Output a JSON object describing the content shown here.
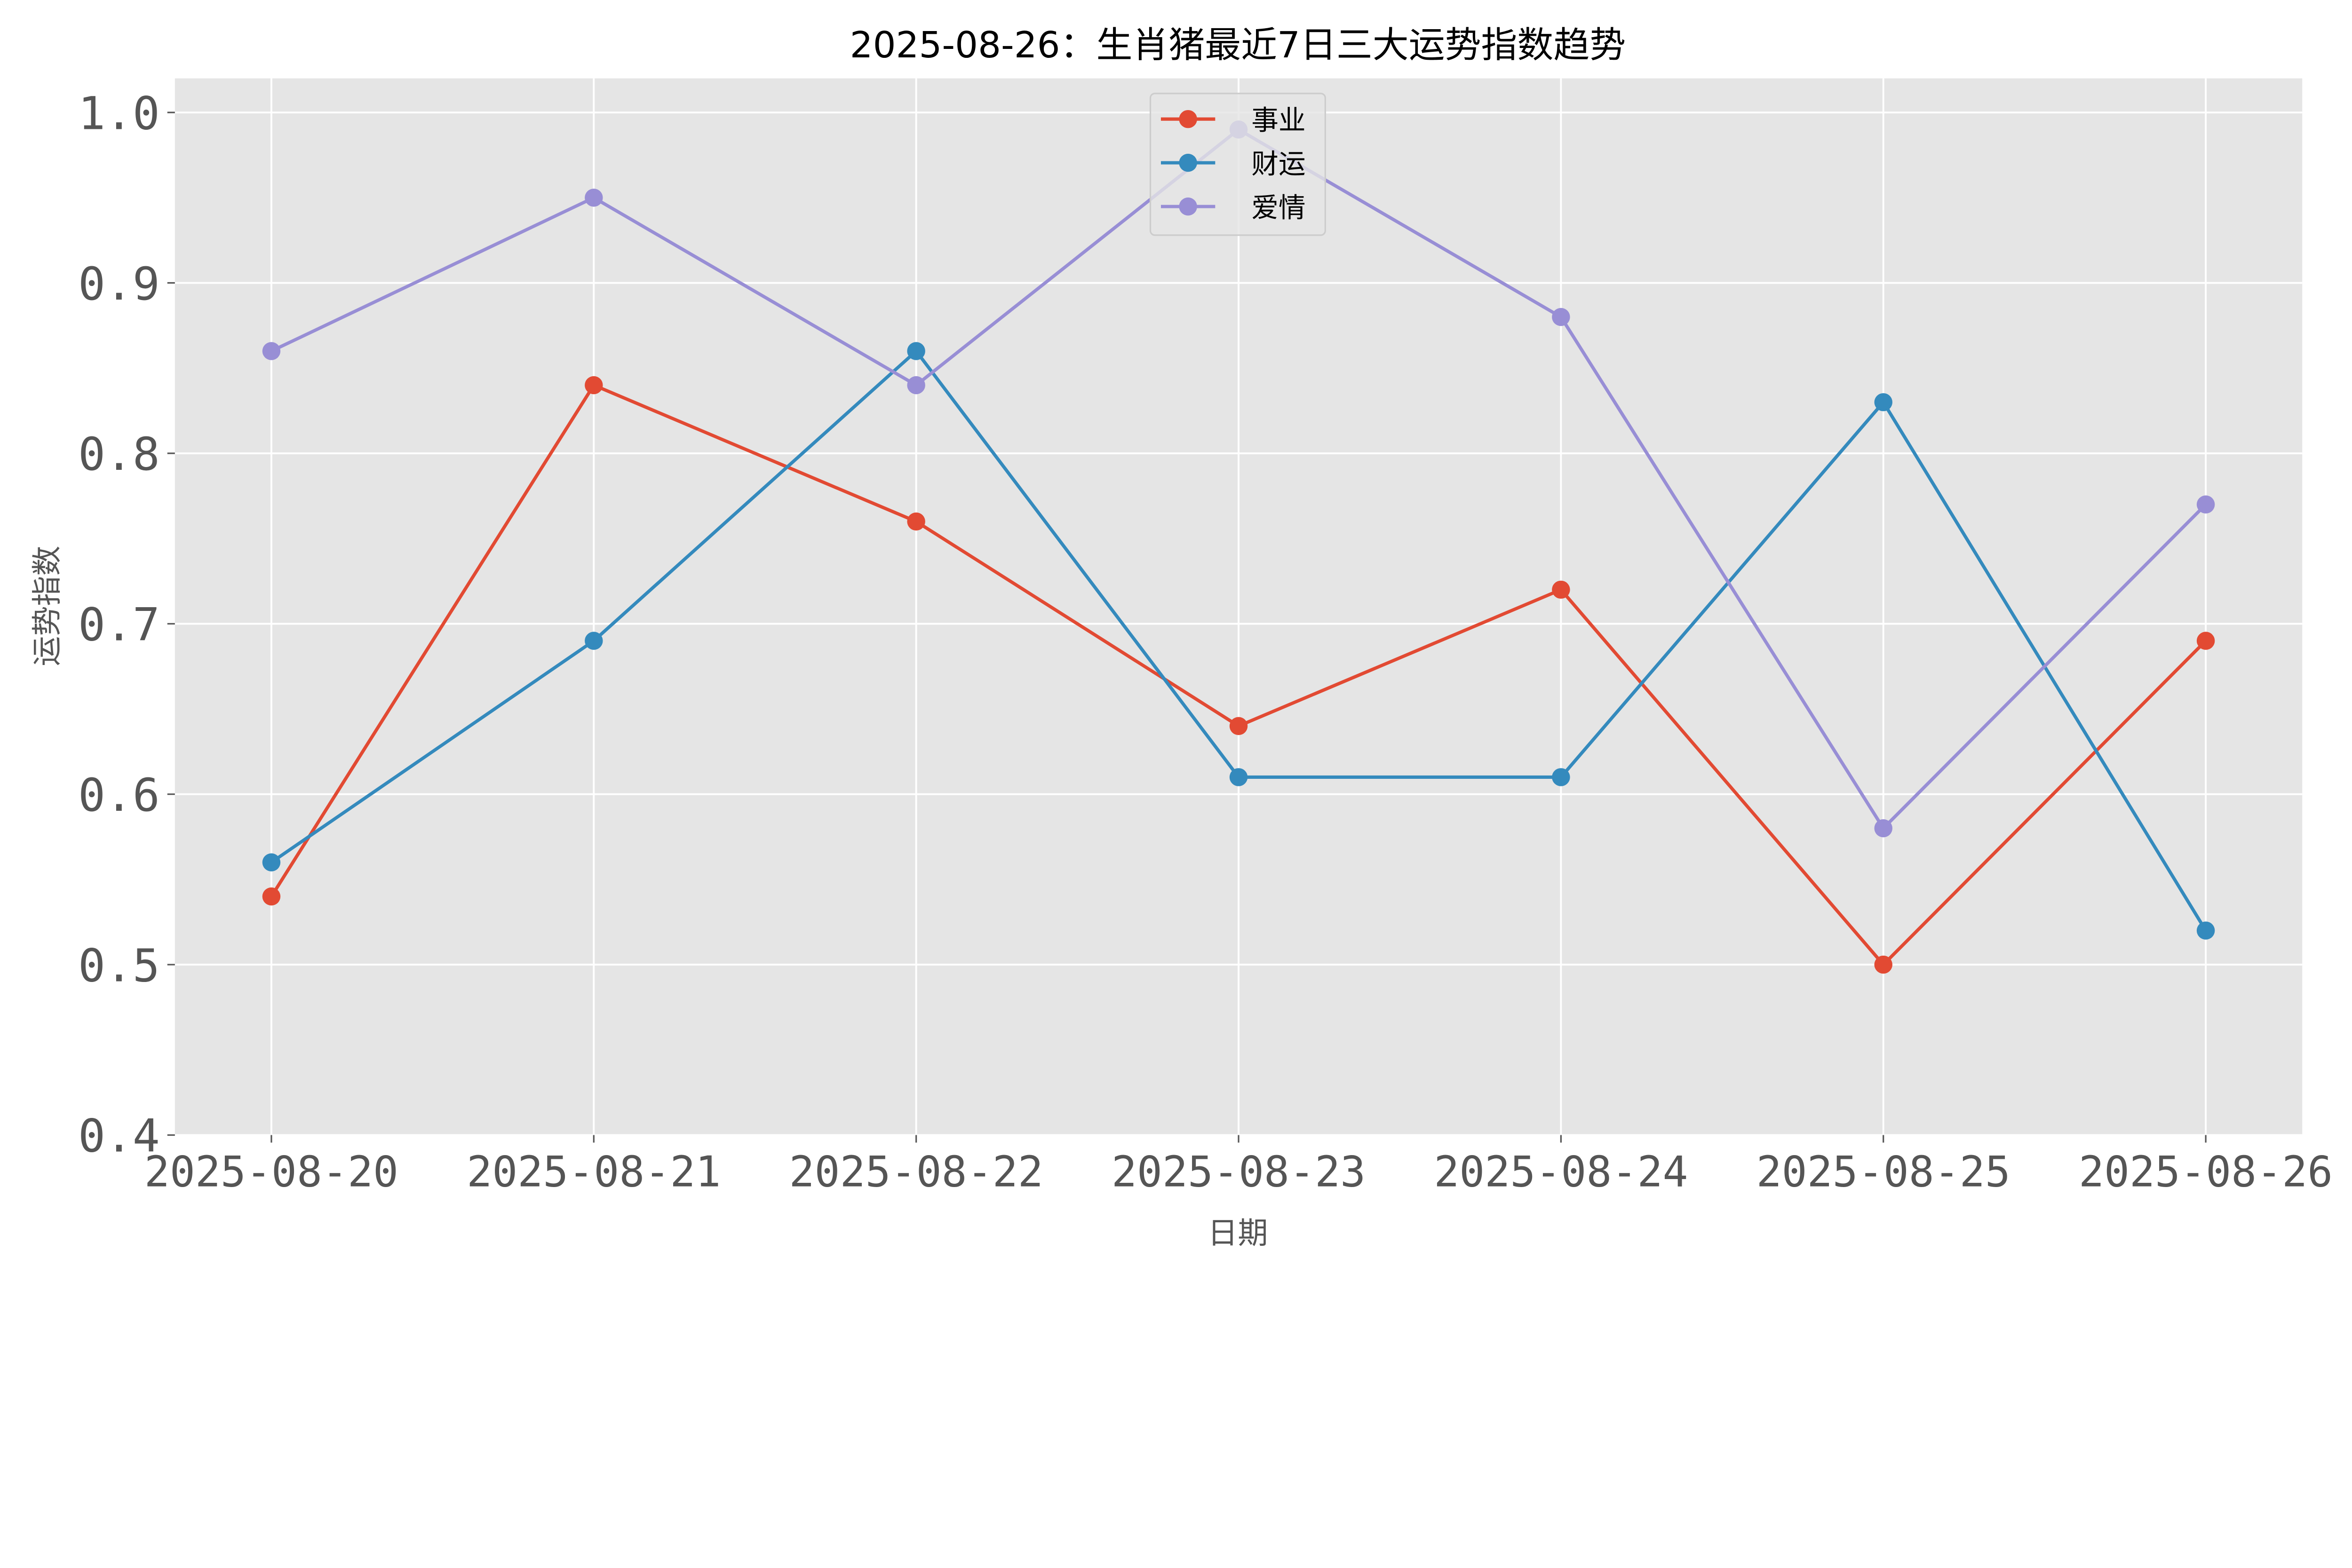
{
  "chart_data": {
    "type": "line",
    "title": "2025-08-26：生肖猪最近7日三大运势指数趋势",
    "xlabel": "日期",
    "ylabel": "运势指数",
    "categories": [
      "2025-08-20",
      "2025-08-21",
      "2025-08-22",
      "2025-08-23",
      "2025-08-24",
      "2025-08-25",
      "2025-08-26"
    ],
    "ylim": [
      0.4,
      1.02
    ],
    "yticks": [
      "0.4",
      "0.5",
      "0.6",
      "0.7",
      "0.8",
      "0.9",
      "1.0"
    ],
    "grid": true,
    "legend_position": "top-center",
    "series": [
      {
        "name": "事业",
        "color": "#E24A33",
        "values": [
          0.54,
          0.84,
          0.76,
          0.64,
          0.72,
          0.5,
          0.69
        ]
      },
      {
        "name": "财运",
        "color": "#348ABD",
        "values": [
          0.56,
          0.69,
          0.86,
          0.61,
          0.61,
          0.83,
          0.52
        ]
      },
      {
        "name": "爱情",
        "color": "#988ED5",
        "values": [
          0.86,
          0.95,
          0.84,
          0.99,
          0.88,
          0.58,
          0.77
        ]
      }
    ]
  }
}
